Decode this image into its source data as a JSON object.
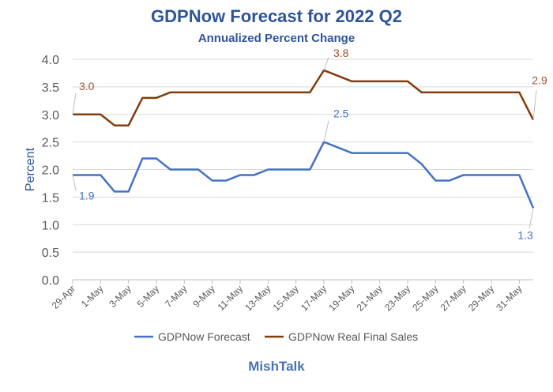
{
  "chart_data": {
    "type": "line",
    "title": "GDPNow Forecast for 2022 Q2",
    "subtitle": "Annualized Percent Change",
    "ylabel": "Percent",
    "xlabel": "",
    "ylim": [
      0,
      4.0
    ],
    "yticks": [
      "0.0",
      "0.5",
      "1.0",
      "1.5",
      "2.0",
      "2.5",
      "3.0",
      "3.5",
      "4.0"
    ],
    "grid": true,
    "legend": "bottom",
    "x": [
      "29-Apr",
      "30-Apr",
      "1-May",
      "2-May",
      "3-May",
      "4-May",
      "5-May",
      "6-May",
      "7-May",
      "8-May",
      "9-May",
      "10-May",
      "11-May",
      "12-May",
      "13-May",
      "14-May",
      "15-May",
      "16-May",
      "17-May",
      "18-May",
      "19-May",
      "20-May",
      "21-May",
      "22-May",
      "23-May",
      "24-May",
      "25-May",
      "26-May",
      "27-May",
      "28-May",
      "29-May",
      "30-May",
      "31-May",
      "1-Jun"
    ],
    "xtick_labels": [
      "29-Apr",
      "1-May",
      "3-May",
      "5-May",
      "7-May",
      "9-May",
      "11-May",
      "13-May",
      "15-May",
      "17-May",
      "19-May",
      "21-May",
      "23-May",
      "25-May",
      "27-May",
      "29-May",
      "31-May"
    ],
    "series": [
      {
        "name": "GDPNow Forecast",
        "color": "#4472c4",
        "values": [
          1.9,
          1.9,
          1.9,
          1.6,
          1.6,
          2.2,
          2.2,
          2.0,
          2.0,
          2.0,
          1.8,
          1.8,
          1.9,
          1.9,
          2.0,
          2.0,
          2.0,
          2.0,
          2.5,
          2.4,
          2.3,
          2.3,
          2.3,
          2.3,
          2.3,
          2.1,
          1.8,
          1.8,
          1.9,
          1.9,
          1.9,
          1.9,
          1.9,
          1.3
        ],
        "labels": [
          {
            "index": 0,
            "text": "1.9"
          },
          {
            "index": 18,
            "text": "2.5"
          },
          {
            "index": 33,
            "text": "1.3"
          }
        ]
      },
      {
        "name": "GDPNow Real Final Sales",
        "color": "#843c0c",
        "values": [
          3.0,
          3.0,
          3.0,
          2.8,
          2.8,
          3.3,
          3.3,
          3.4,
          3.4,
          3.4,
          3.4,
          3.4,
          3.4,
          3.4,
          3.4,
          3.4,
          3.4,
          3.4,
          3.8,
          3.7,
          3.6,
          3.6,
          3.6,
          3.6,
          3.6,
          3.4,
          3.4,
          3.4,
          3.4,
          3.4,
          3.4,
          3.4,
          3.4,
          2.9
        ],
        "labels": [
          {
            "index": 0,
            "text": "3.0"
          },
          {
            "index": 18,
            "text": "3.8"
          },
          {
            "index": 33,
            "text": "2.9"
          }
        ]
      }
    ]
  },
  "brand": "MishTalk"
}
